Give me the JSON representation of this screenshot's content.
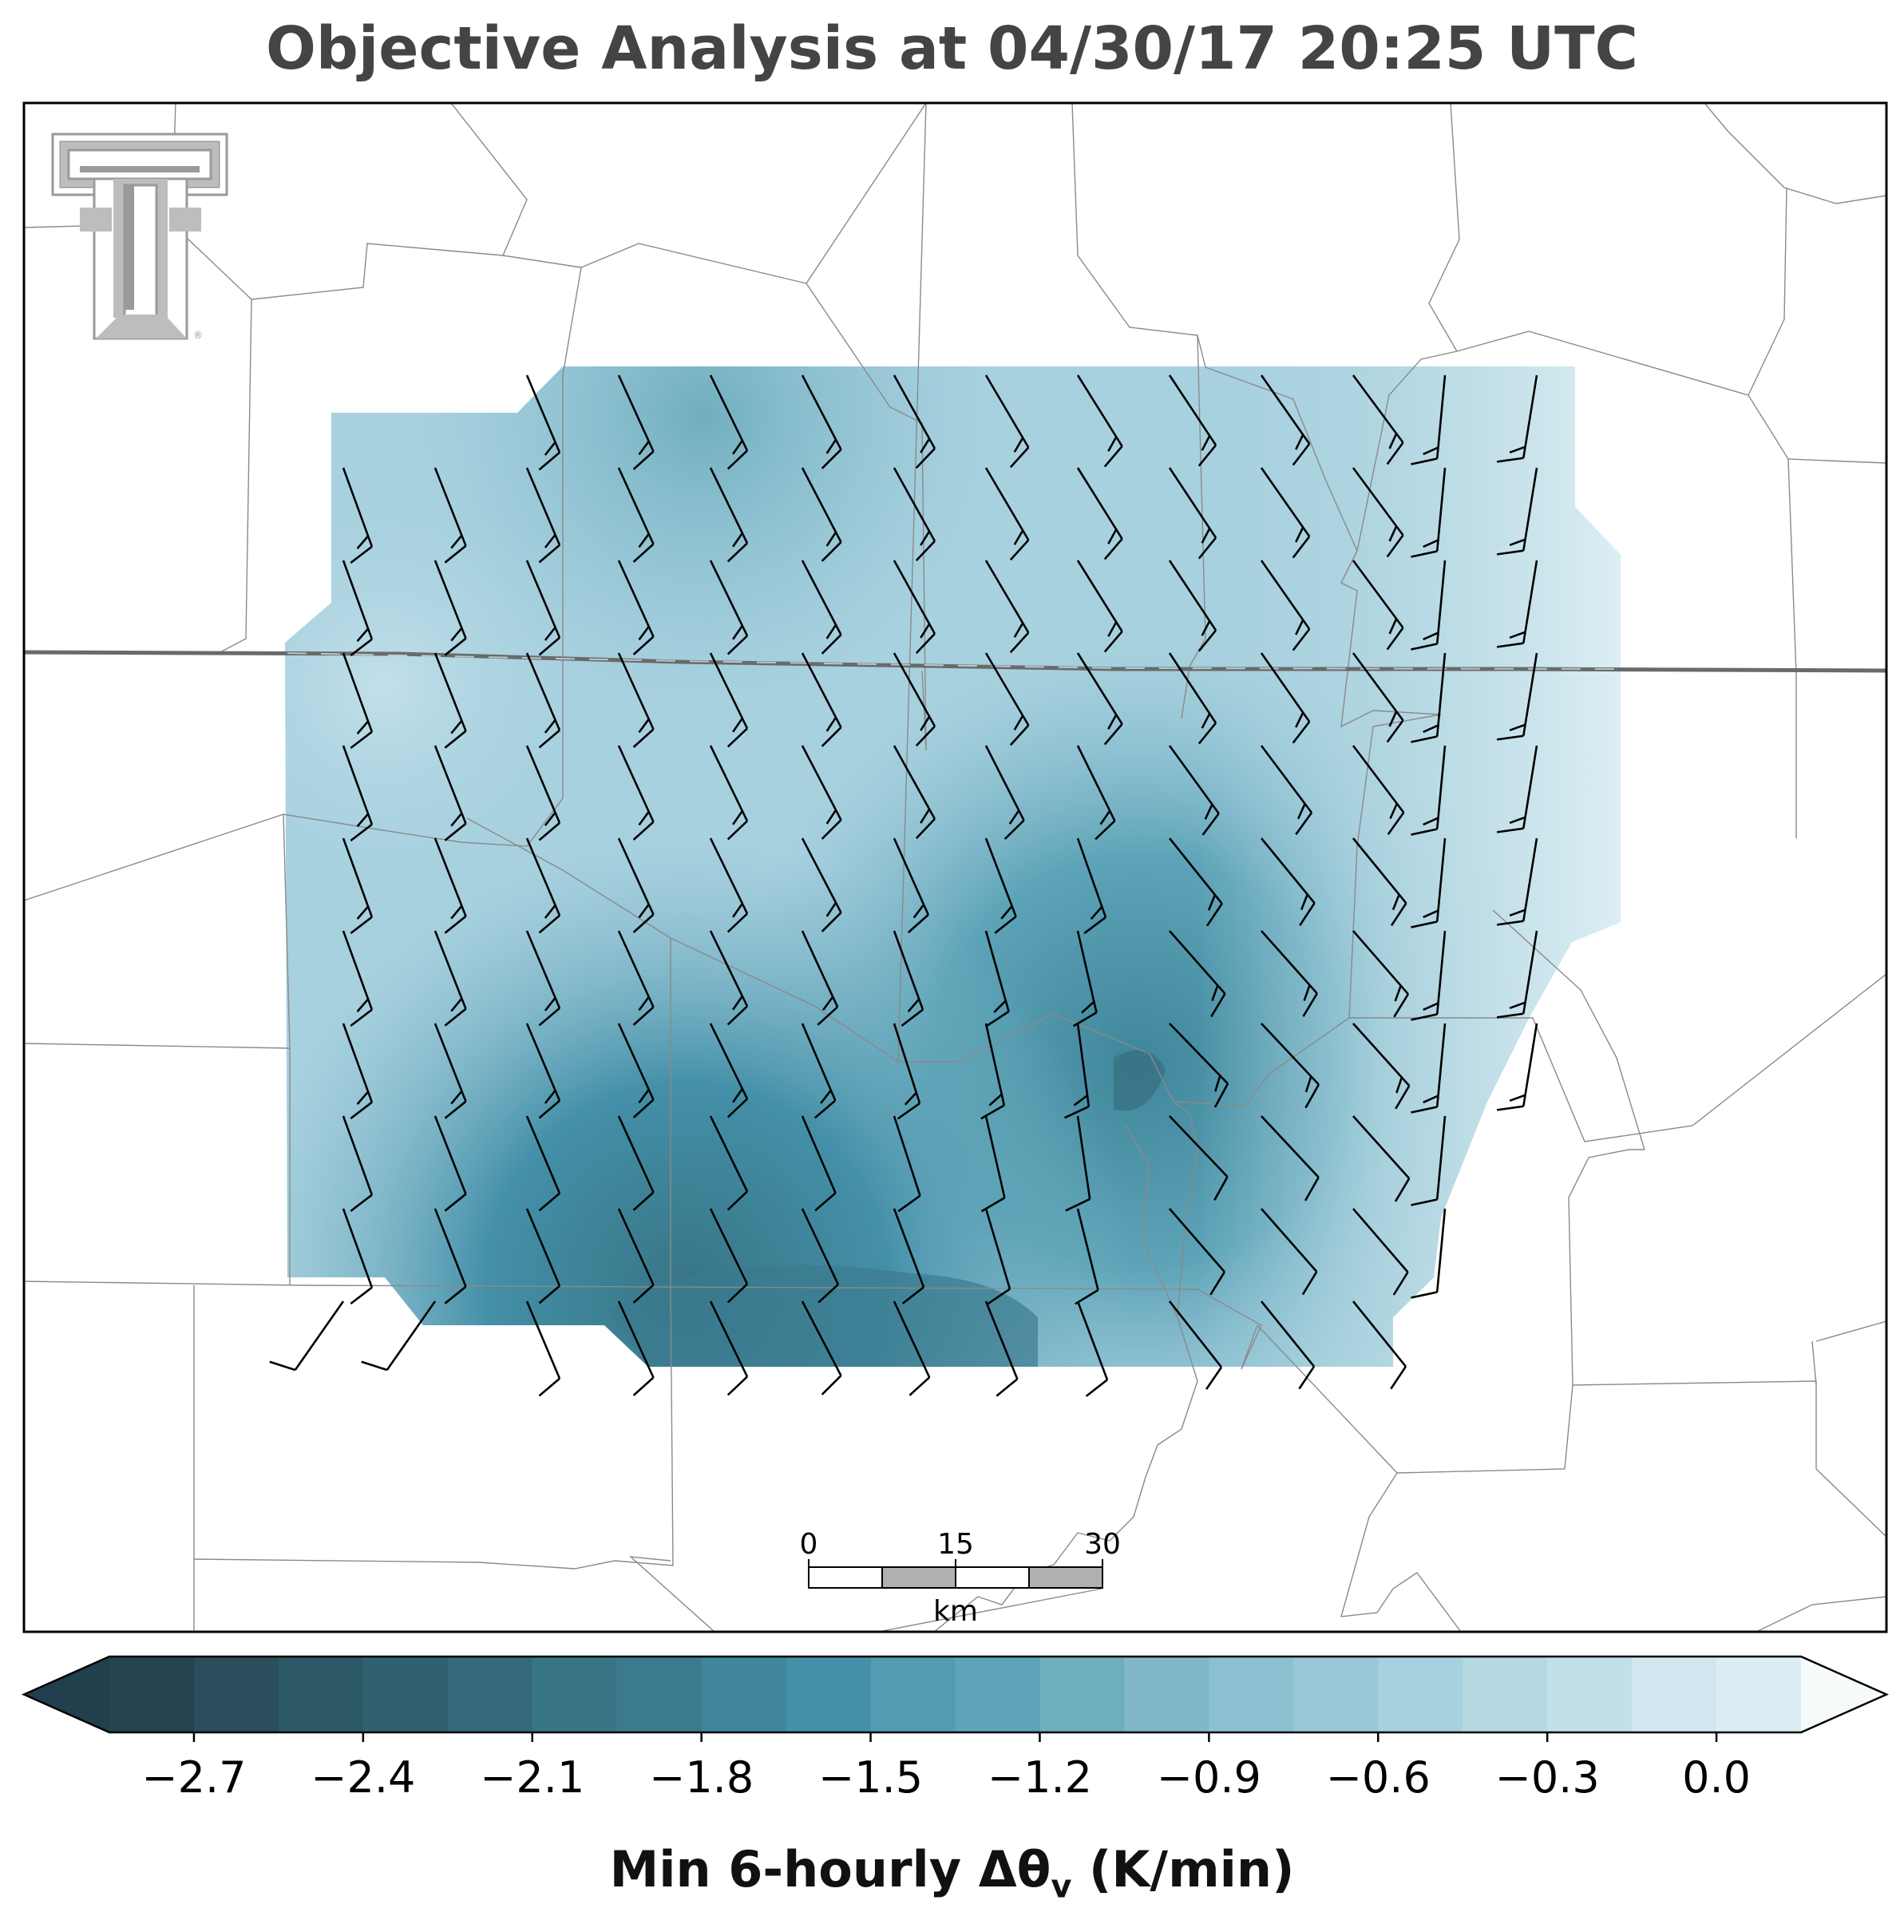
{
  "title": "Objective Analysis at 04/30/17 20:25 UTC",
  "logo": {
    "name": "Texas Tech double-T logo",
    "mark": "®"
  },
  "scale_bar": {
    "ticks": [
      "0",
      "15",
      "30"
    ],
    "unit": "km"
  },
  "colorbar": {
    "label_main": "Min 6-hourly Δθ",
    "label_sub": "v",
    "label_units": " (K/min)",
    "ticks": [
      "−2.7",
      "−2.4",
      "−2.1",
      "−1.8",
      "−1.5",
      "−1.2",
      "−0.9",
      "−0.6",
      "−0.3",
      "0.0"
    ],
    "levels": [
      -2.85,
      -2.7,
      -2.55,
      -2.4,
      -2.25,
      -2.1,
      -1.95,
      -1.8,
      -1.65,
      -1.5,
      -1.35,
      -1.2,
      -1.05,
      -0.9,
      -0.75,
      -0.6,
      -0.45,
      -0.3,
      -0.15,
      0.0,
      0.15
    ],
    "colors": [
      "#213f4c",
      "#25444f",
      "#2a4e5c",
      "#2d5866",
      "#31606f",
      "#34697a",
      "#387586",
      "#3c7b8e",
      "#3f869b",
      "#4490a8",
      "#529bb1",
      "#5ea4b8",
      "#6faebf",
      "#80b7c9",
      "#8cbfd0",
      "#99c7d6",
      "#a8d1df",
      "#b5d8e3",
      "#c3e0ea",
      "#d1e7ef",
      "#dceef4",
      "#e6f2f6",
      "#eef6f9",
      "#f6fafb"
    ],
    "extend": "both"
  },
  "colors": {
    "wind_barb": "#000000",
    "state_line": "#666666",
    "county_line": "#8a8a8a"
  }
}
